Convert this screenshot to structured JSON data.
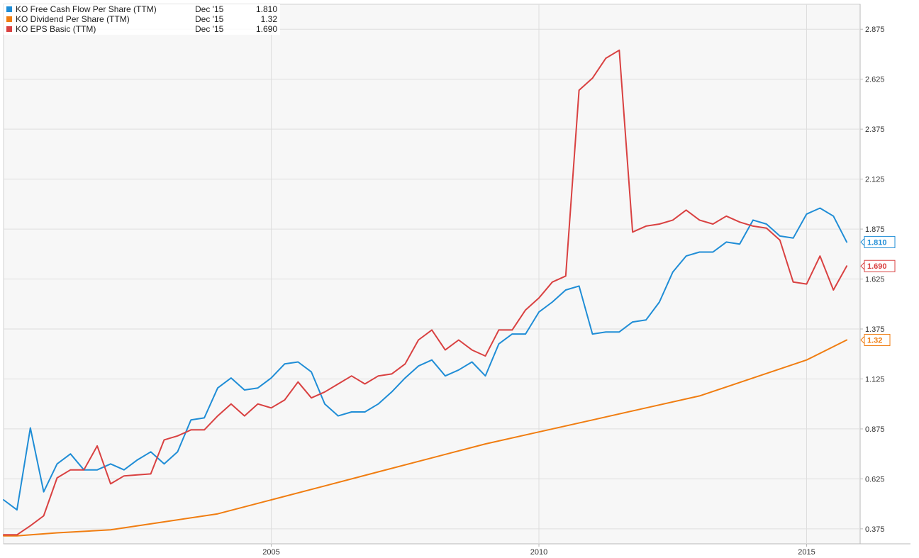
{
  "chart_data": {
    "type": "line",
    "x_axis": {
      "range": [
        2000.0,
        2016.0
      ],
      "ticks": [
        {
          "value": 2005,
          "label": "2005"
        },
        {
          "value": 2010,
          "label": "2010"
        },
        {
          "value": 2015,
          "label": "2015"
        }
      ]
    },
    "y_axis": {
      "range": [
        0.3,
        3.0
      ],
      "position": "right",
      "ticks": [
        {
          "value": 0.375,
          "label": "0.375"
        },
        {
          "value": 0.625,
          "label": "0.625"
        },
        {
          "value": 0.875,
          "label": "0.875"
        },
        {
          "value": 1.125,
          "label": "1.125"
        },
        {
          "value": 1.375,
          "label": "1.375"
        },
        {
          "value": 1.625,
          "label": "1.625"
        },
        {
          "value": 1.875,
          "label": "1.875"
        },
        {
          "value": 2.125,
          "label": "2.125"
        },
        {
          "value": 2.375,
          "label": "2.375"
        },
        {
          "value": 2.625,
          "label": "2.625"
        },
        {
          "value": 2.875,
          "label": "2.875"
        }
      ]
    },
    "grid": true,
    "legend_position": "top-left",
    "series": [
      {
        "name": "KO Free Cash Flow Per Share (TTM)",
        "legend_date": "Dec '15",
        "legend_value": "1.810",
        "end_label": "1.810",
        "color": "#1f8dd6",
        "points": [
          [
            2000.0,
            0.52
          ],
          [
            2000.25,
            0.47
          ],
          [
            2000.5,
            0.88
          ],
          [
            2000.75,
            0.56
          ],
          [
            2001.0,
            0.7
          ],
          [
            2001.25,
            0.75
          ],
          [
            2001.5,
            0.67
          ],
          [
            2001.75,
            0.67
          ],
          [
            2002.0,
            0.7
          ],
          [
            2002.25,
            0.67
          ],
          [
            2002.5,
            0.72
          ],
          [
            2002.75,
            0.76
          ],
          [
            2003.0,
            0.7
          ],
          [
            2003.25,
            0.76
          ],
          [
            2003.5,
            0.92
          ],
          [
            2003.75,
            0.93
          ],
          [
            2004.0,
            1.08
          ],
          [
            2004.25,
            1.13
          ],
          [
            2004.5,
            1.07
          ],
          [
            2004.75,
            1.08
          ],
          [
            2005.0,
            1.13
          ],
          [
            2005.25,
            1.2
          ],
          [
            2005.5,
            1.21
          ],
          [
            2005.75,
            1.16
          ],
          [
            2006.0,
            1.0
          ],
          [
            2006.25,
            0.94
          ],
          [
            2006.5,
            0.96
          ],
          [
            2006.75,
            0.96
          ],
          [
            2007.0,
            1.0
          ],
          [
            2007.25,
            1.06
          ],
          [
            2007.5,
            1.13
          ],
          [
            2007.75,
            1.19
          ],
          [
            2008.0,
            1.22
          ],
          [
            2008.25,
            1.14
          ],
          [
            2008.5,
            1.17
          ],
          [
            2008.75,
            1.21
          ],
          [
            2009.0,
            1.14
          ],
          [
            2009.25,
            1.3
          ],
          [
            2009.5,
            1.35
          ],
          [
            2009.75,
            1.35
          ],
          [
            2010.0,
            1.46
          ],
          [
            2010.25,
            1.51
          ],
          [
            2010.5,
            1.57
          ],
          [
            2010.75,
            1.59
          ],
          [
            2011.0,
            1.35
          ],
          [
            2011.25,
            1.36
          ],
          [
            2011.5,
            1.36
          ],
          [
            2011.75,
            1.41
          ],
          [
            2012.0,
            1.42
          ],
          [
            2012.25,
            1.51
          ],
          [
            2012.5,
            1.66
          ],
          [
            2012.75,
            1.74
          ],
          [
            2013.0,
            1.76
          ],
          [
            2013.25,
            1.76
          ],
          [
            2013.5,
            1.81
          ],
          [
            2013.75,
            1.8
          ],
          [
            2014.0,
            1.92
          ],
          [
            2014.25,
            1.9
          ],
          [
            2014.5,
            1.84
          ],
          [
            2014.75,
            1.83
          ],
          [
            2015.0,
            1.95
          ],
          [
            2015.25,
            1.98
          ],
          [
            2015.5,
            1.94
          ],
          [
            2015.75,
            1.81
          ]
        ]
      },
      {
        "name": "KO Dividend Per Share (TTM)",
        "legend_date": "Dec '15",
        "legend_value": "1.32",
        "end_label": "1.32",
        "color": "#f07d11",
        "points": [
          [
            2000.0,
            0.34
          ],
          [
            2000.25,
            0.34
          ],
          [
            2001.0,
            0.355
          ],
          [
            2002.0,
            0.37
          ],
          [
            2003.0,
            0.41
          ],
          [
            2004.0,
            0.45
          ],
          [
            2005.0,
            0.52
          ],
          [
            2006.0,
            0.59
          ],
          [
            2007.0,
            0.66
          ],
          [
            2008.0,
            0.73
          ],
          [
            2009.0,
            0.8
          ],
          [
            2010.0,
            0.86
          ],
          [
            2011.0,
            0.92
          ],
          [
            2012.0,
            0.98
          ],
          [
            2013.0,
            1.04
          ],
          [
            2014.0,
            1.13
          ],
          [
            2015.0,
            1.22
          ],
          [
            2015.75,
            1.32
          ]
        ]
      },
      {
        "name": "KO EPS Basic (TTM)",
        "legend_date": "Dec '15",
        "legend_value": "1.690",
        "end_label": "1.690",
        "color": "#d94141",
        "points": [
          [
            2000.0,
            0.345
          ],
          [
            2000.25,
            0.345
          ],
          [
            2000.5,
            0.39
          ],
          [
            2000.75,
            0.44
          ],
          [
            2001.0,
            0.63
          ],
          [
            2001.25,
            0.67
          ],
          [
            2001.5,
            0.67
          ],
          [
            2001.75,
            0.79
          ],
          [
            2002.0,
            0.6
          ],
          [
            2002.25,
            0.64
          ],
          [
            2002.5,
            0.645
          ],
          [
            2002.75,
            0.65
          ],
          [
            2003.0,
            0.82
          ],
          [
            2003.25,
            0.84
          ],
          [
            2003.5,
            0.87
          ],
          [
            2003.75,
            0.87
          ],
          [
            2004.0,
            0.94
          ],
          [
            2004.25,
            1.0
          ],
          [
            2004.5,
            0.94
          ],
          [
            2004.75,
            1.0
          ],
          [
            2005.0,
            0.98
          ],
          [
            2005.25,
            1.02
          ],
          [
            2005.5,
            1.11
          ],
          [
            2005.75,
            1.03
          ],
          [
            2006.0,
            1.06
          ],
          [
            2006.25,
            1.1
          ],
          [
            2006.5,
            1.14
          ],
          [
            2006.75,
            1.1
          ],
          [
            2007.0,
            1.14
          ],
          [
            2007.25,
            1.15
          ],
          [
            2007.5,
            1.2
          ],
          [
            2007.75,
            1.32
          ],
          [
            2008.0,
            1.37
          ],
          [
            2008.25,
            1.27
          ],
          [
            2008.5,
            1.32
          ],
          [
            2008.75,
            1.27
          ],
          [
            2009.0,
            1.24
          ],
          [
            2009.25,
            1.37
          ],
          [
            2009.5,
            1.37
          ],
          [
            2009.75,
            1.47
          ],
          [
            2010.0,
            1.53
          ],
          [
            2010.25,
            1.61
          ],
          [
            2010.5,
            1.64
          ],
          [
            2010.75,
            2.57
          ],
          [
            2011.0,
            2.63
          ],
          [
            2011.25,
            2.73
          ],
          [
            2011.5,
            2.77
          ],
          [
            2011.75,
            1.86
          ],
          [
            2012.0,
            1.89
          ],
          [
            2012.25,
            1.9
          ],
          [
            2012.5,
            1.92
          ],
          [
            2012.75,
            1.97
          ],
          [
            2013.0,
            1.92
          ],
          [
            2013.25,
            1.9
          ],
          [
            2013.5,
            1.94
          ],
          [
            2013.75,
            1.91
          ],
          [
            2014.0,
            1.89
          ],
          [
            2014.25,
            1.88
          ],
          [
            2014.5,
            1.82
          ],
          [
            2014.75,
            1.61
          ],
          [
            2015.0,
            1.6
          ],
          [
            2015.25,
            1.74
          ],
          [
            2015.5,
            1.57
          ],
          [
            2015.75,
            1.69
          ]
        ]
      }
    ]
  }
}
